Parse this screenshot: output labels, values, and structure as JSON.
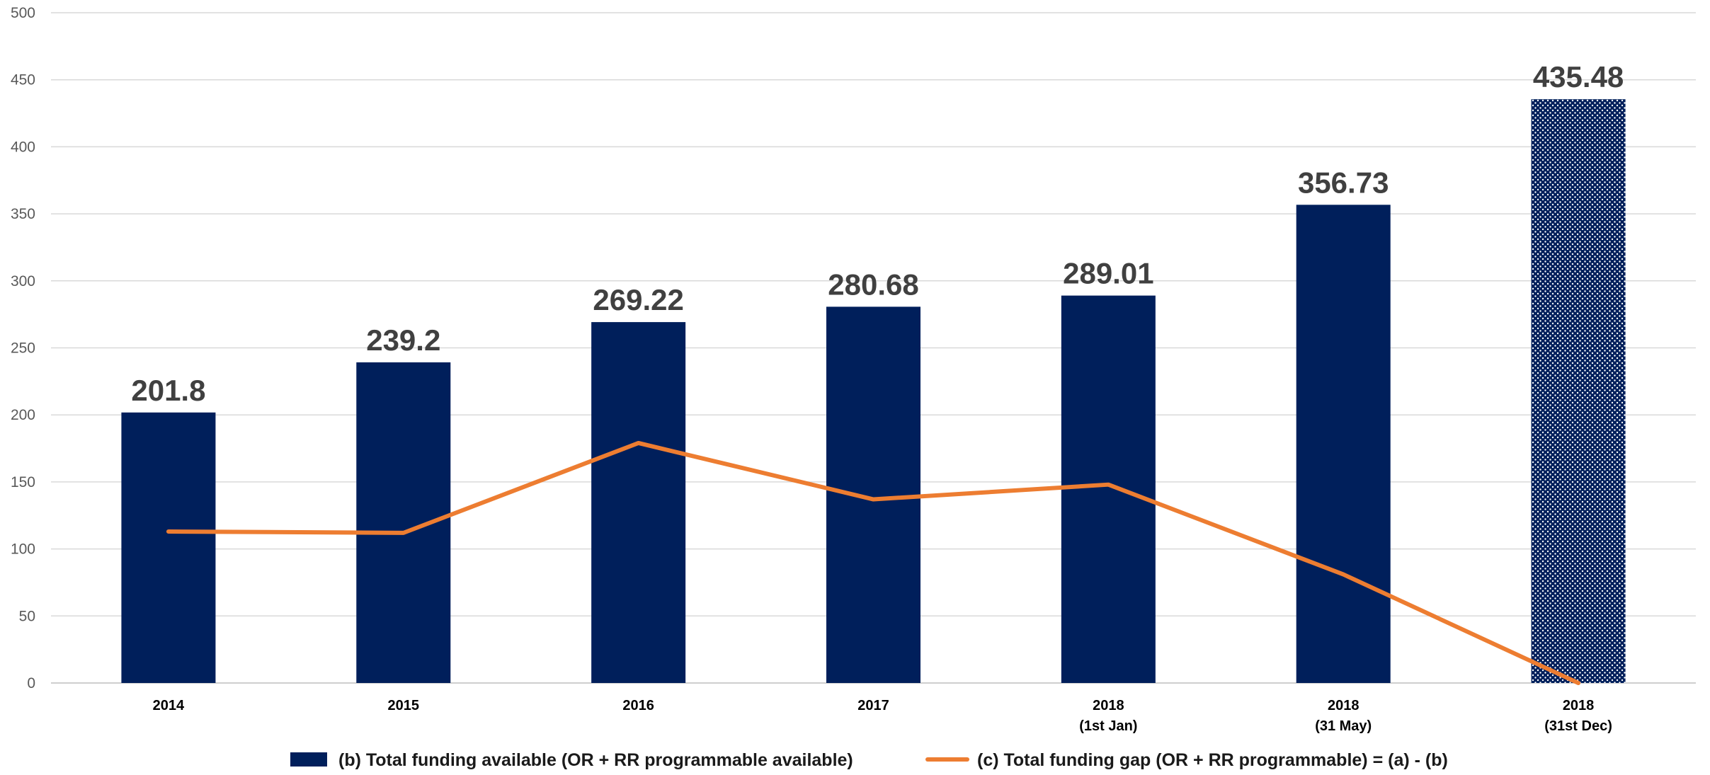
{
  "chart_data": {
    "type": "bar",
    "categories": [
      [
        "2014"
      ],
      [
        "2015"
      ],
      [
        "2016"
      ],
      [
        "2017"
      ],
      [
        "2018",
        "(1st Jan)"
      ],
      [
        "2018",
        "(31 May)"
      ],
      [
        "2018",
        "(31st Dec)"
      ]
    ],
    "ylim": [
      0,
      500
    ],
    "yticks": [
      0,
      50,
      100,
      150,
      200,
      250,
      300,
      350,
      400,
      450,
      500
    ],
    "grid": true,
    "legend_position": "bottom",
    "series": [
      {
        "name": "(b) Total  funding available (OR + RR programmable available)",
        "type": "bar",
        "color": "#001F5B",
        "values": [
          201.8,
          239.2,
          269.22,
          280.68,
          289.01,
          356.73,
          435.48
        ],
        "data_labels": [
          "201.8",
          "239.2",
          "269.22",
          "280.68",
          "289.01",
          "356.73",
          "435.48"
        ],
        "patterned_last_bar": true
      },
      {
        "name": "(c) Total funding gap (OR + RR programmable) = (a) - (b)",
        "type": "line",
        "color": "#ED7D31",
        "values": [
          113,
          112,
          179,
          137,
          148,
          81,
          0
        ]
      }
    ]
  }
}
